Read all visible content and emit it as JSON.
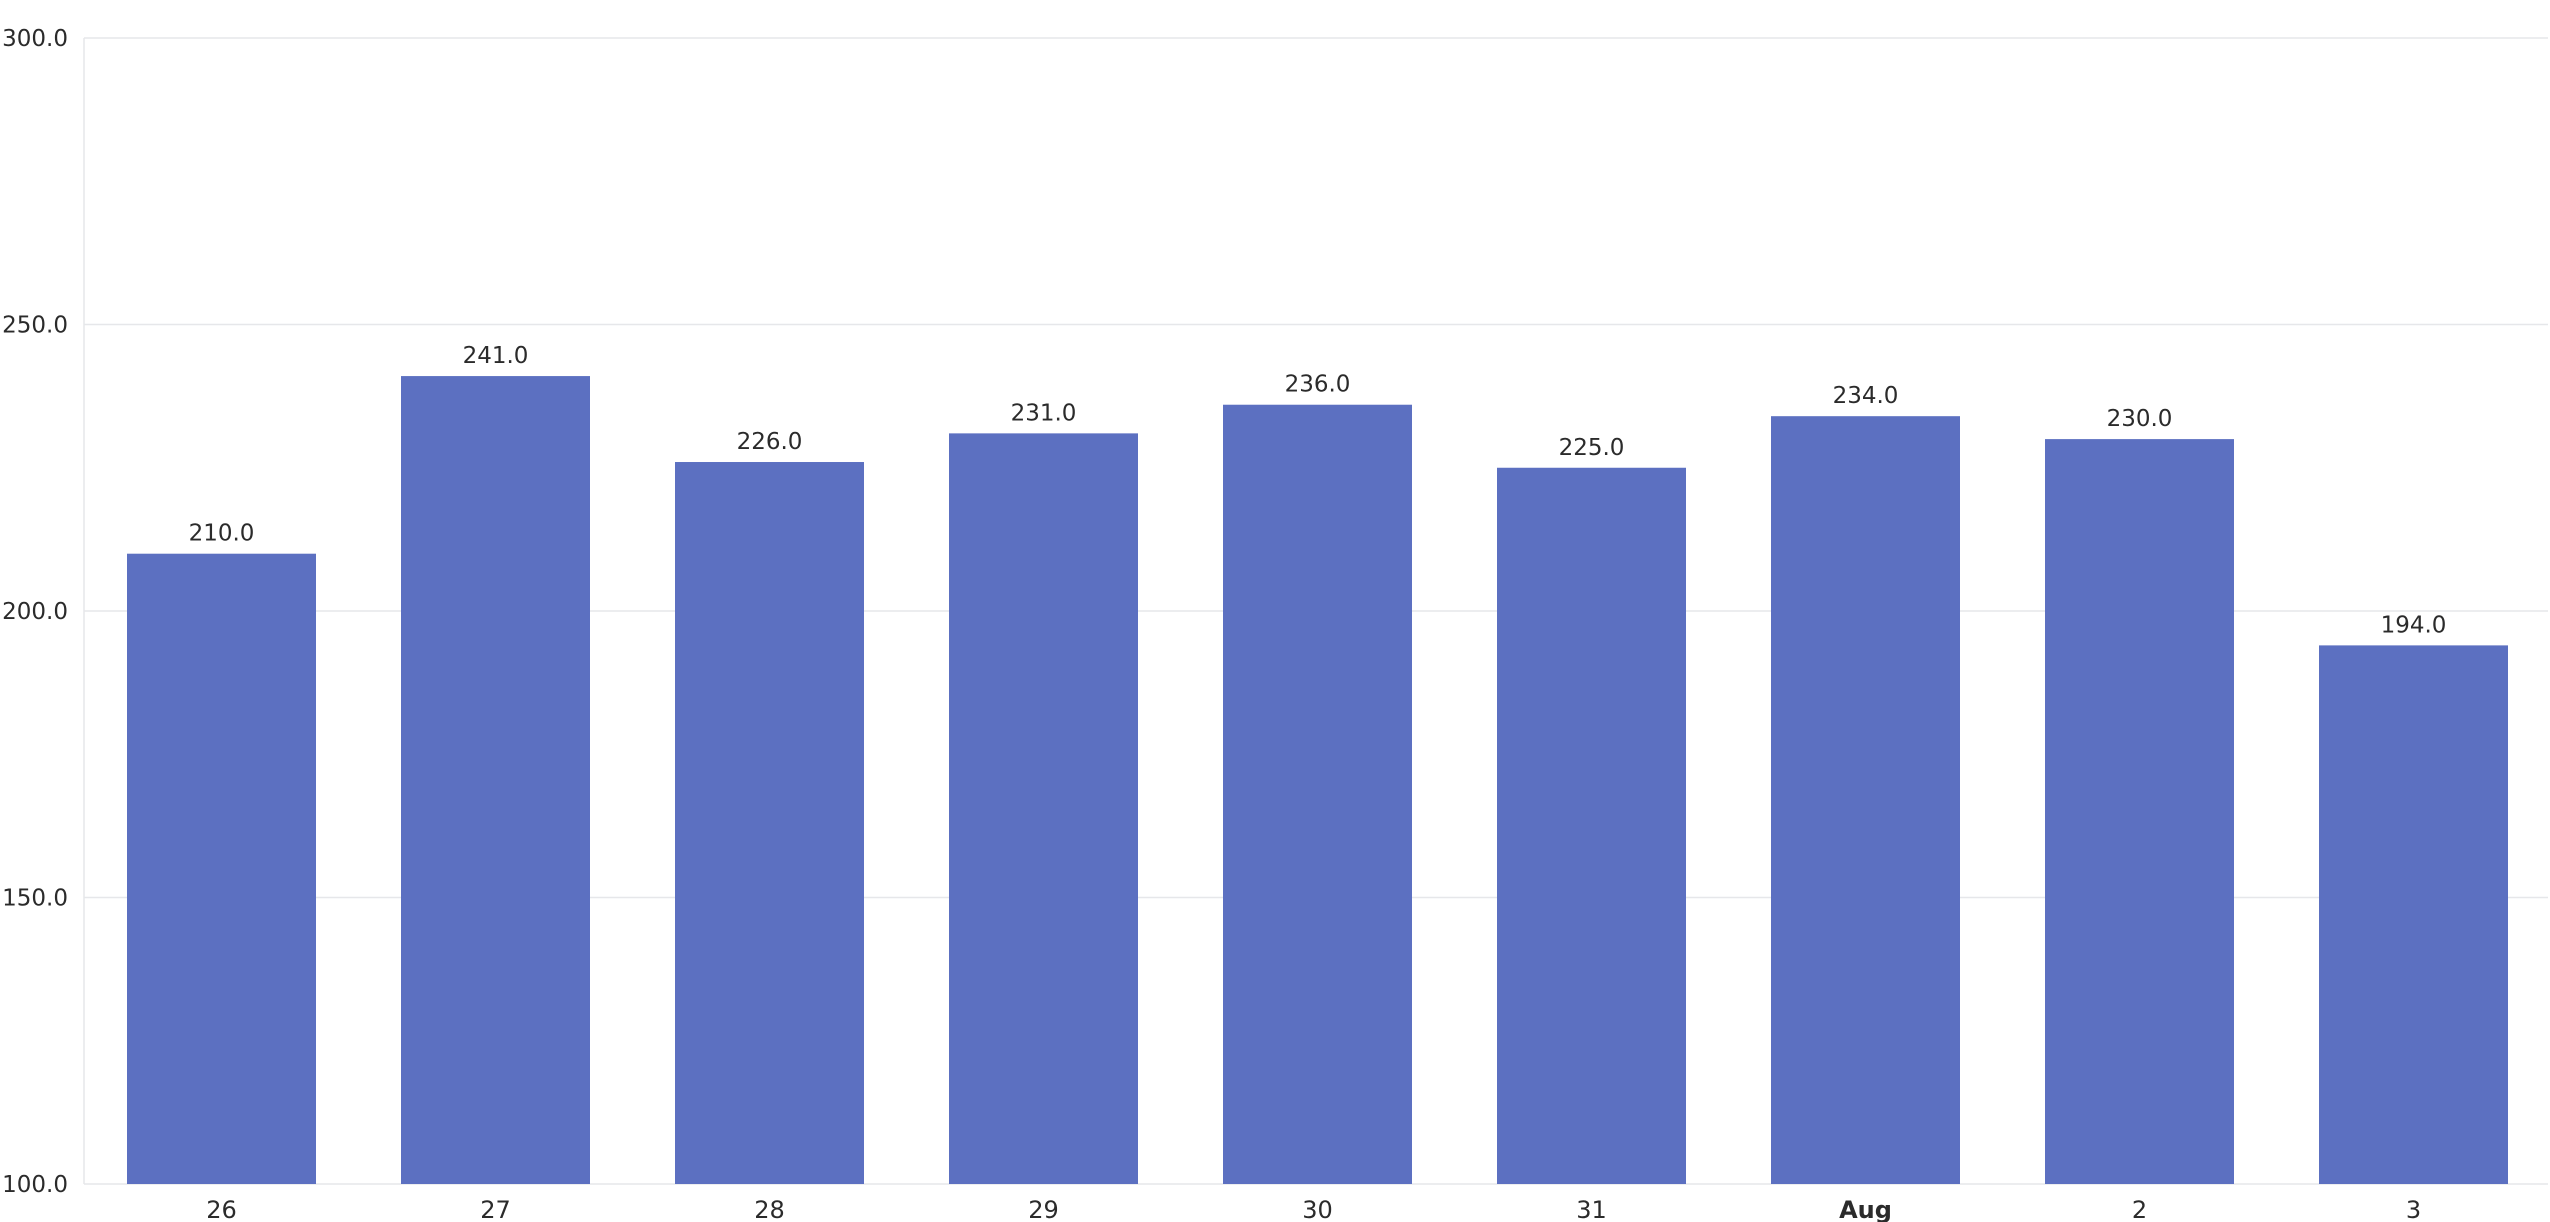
{
  "chart_data": {
    "type": "bar",
    "categories": [
      "26",
      "27",
      "28",
      "29",
      "30",
      "31",
      "Aug",
      "2",
      "3"
    ],
    "bold_categories": [
      "Aug"
    ],
    "values": [
      210.0,
      241.0,
      226.0,
      231.0,
      236.0,
      225.0,
      234.0,
      230.0,
      194.0
    ],
    "value_labels": [
      "210.0",
      "241.0",
      "226.0",
      "231.0",
      "236.0",
      "225.0",
      "234.0",
      "230.0",
      "194.0"
    ],
    "y_ticks": [
      "100.0",
      "150.0",
      "200.0",
      "250.0",
      "300.0"
    ],
    "ylim": [
      100,
      300
    ],
    "grid": true,
    "bar_color": "#5c70c1",
    "grid_color": "#e6e7ea",
    "text_color": "#2b2b2b"
  }
}
